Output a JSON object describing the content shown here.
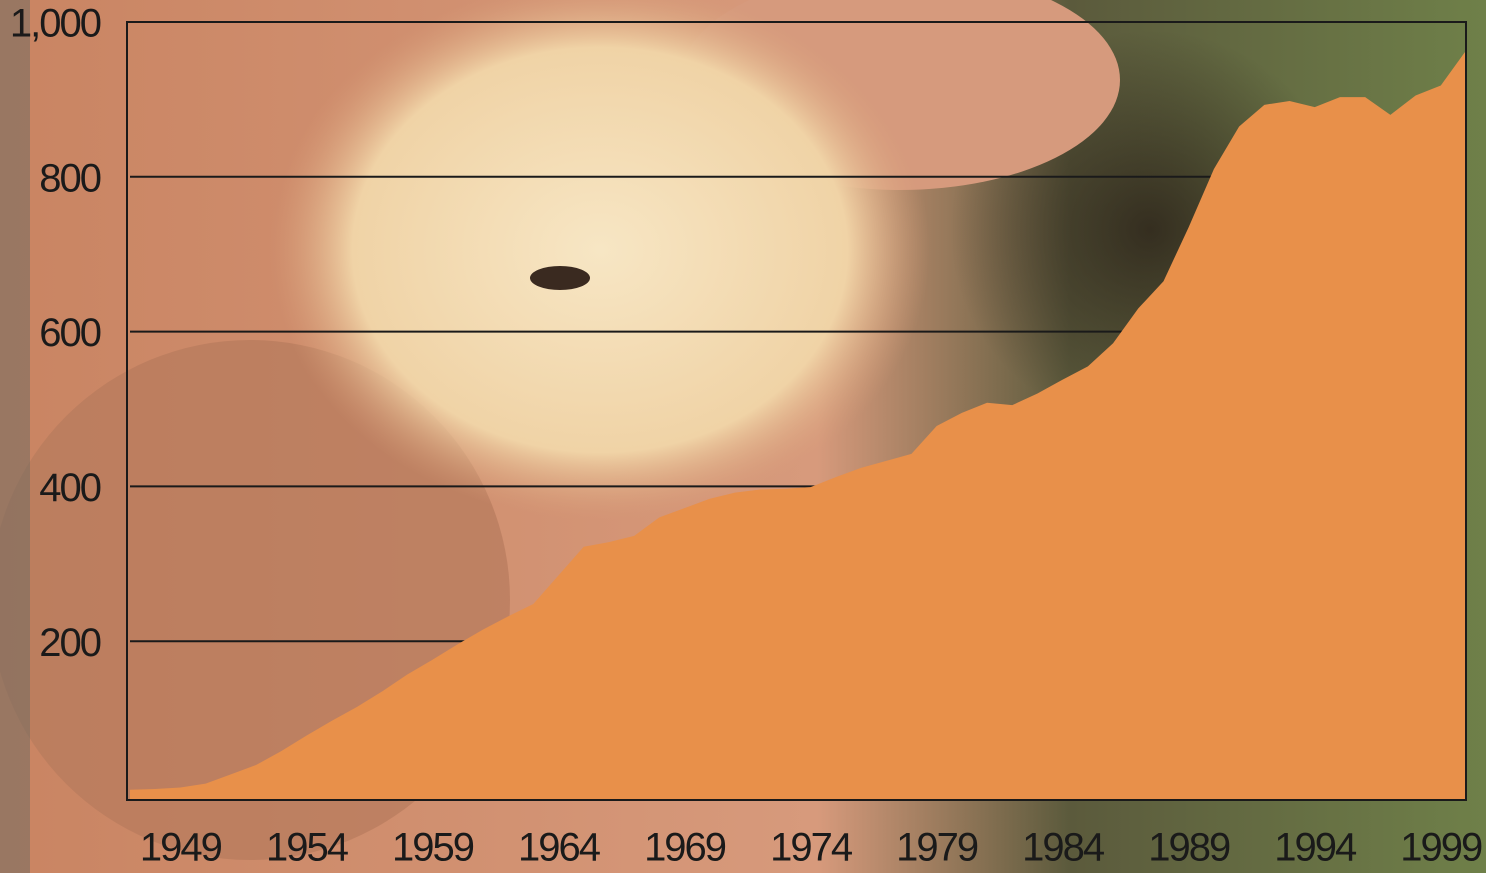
{
  "chart_data": {
    "type": "area",
    "x": [
      1947,
      1948,
      1949,
      1950,
      1951,
      1952,
      1953,
      1954,
      1955,
      1956,
      1957,
      1958,
      1959,
      1960,
      1961,
      1962,
      1963,
      1964,
      1965,
      1966,
      1967,
      1968,
      1969,
      1970,
      1971,
      1972,
      1973,
      1974,
      1975,
      1976,
      1977,
      1978,
      1979,
      1980,
      1981,
      1982,
      1983,
      1984,
      1985,
      1986,
      1987,
      1988,
      1989,
      1990,
      1991,
      1992,
      1993,
      1994,
      1995,
      1996,
      1997,
      1998,
      1999,
      2000
    ],
    "values": [
      8,
      9,
      11,
      16,
      28,
      40,
      58,
      78,
      97,
      115,
      135,
      157,
      176,
      196,
      215,
      232,
      248,
      285,
      322,
      328,
      336,
      360,
      372,
      384,
      392,
      396,
      397,
      399,
      412,
      424,
      433,
      442,
      478,
      495,
      508,
      505,
      520,
      538,
      555,
      585,
      630,
      665,
      735,
      810,
      865,
      893,
      898,
      890,
      903,
      903,
      880,
      905,
      918,
      963
    ],
    "color": "#e8904a",
    "xlim": [
      1947,
      2000
    ],
    "xticks": [
      1949,
      1954,
      1959,
      1964,
      1969,
      1974,
      1979,
      1984,
      1989,
      1994,
      1999
    ],
    "ylim": [
      0,
      1000
    ],
    "yticks": [
      200,
      400,
      600,
      800,
      {
        "value": 1000,
        "label": "1,000"
      }
    ],
    "grid": true
  }
}
